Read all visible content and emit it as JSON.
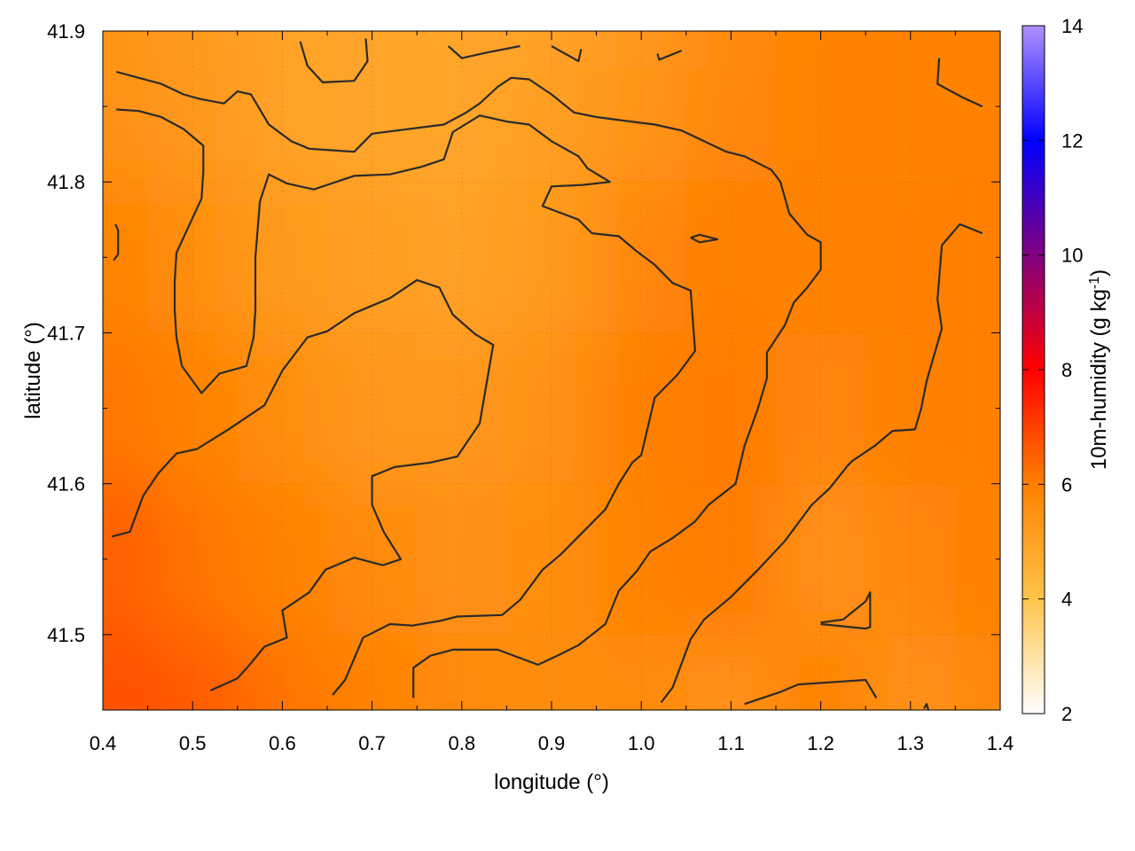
{
  "chart_data": {
    "type": "heatmap",
    "title": "",
    "xlabel": "longitude (°)",
    "ylabel": "latitude (°)",
    "colorbar_label": "10m-humidity (g kg",
    "colorbar_label_sup": "-1",
    "colorbar_label_tail": ")",
    "xlim": [
      0.4,
      1.4
    ],
    "ylim": [
      41.45,
      41.9
    ],
    "xticks": [
      0.4,
      0.5,
      0.6,
      0.7,
      0.8,
      0.9,
      1.0,
      1.1,
      1.2,
      1.3,
      1.4
    ],
    "xtick_labels": [
      "0.4",
      "0.5",
      "0.6",
      "0.7",
      "0.8",
      "0.9",
      "1.0",
      "1.1",
      "1.2",
      "1.3",
      "1.4"
    ],
    "yticks": [
      41.5,
      41.6,
      41.7,
      41.8,
      41.9
    ],
    "ytick_labels": [
      "41.5",
      "41.6",
      "41.7",
      "41.8",
      "41.9"
    ],
    "colorbar_range": [
      2,
      14
    ],
    "colorbar_ticks": [
      2,
      4,
      6,
      8,
      10,
      12,
      14
    ],
    "colorbar_tick_labels": [
      "2",
      "4",
      "6",
      "8",
      "10",
      "12",
      "14"
    ],
    "colorbar_stops": [
      {
        "v": 2,
        "color": "#ffffff"
      },
      {
        "v": 4,
        "color": "#ffc44a"
      },
      {
        "v": 6,
        "color": "#ff8000"
      },
      {
        "v": 8,
        "color": "#ff0000"
      },
      {
        "v": 10,
        "color": "#800080"
      },
      {
        "v": 12,
        "color": "#0000ff"
      },
      {
        "v": 14,
        "color": "#b090ff"
      }
    ],
    "grid": true,
    "field_grid": {
      "x": [
        0.4,
        0.5,
        0.6,
        0.7,
        0.8,
        0.9,
        1.0,
        1.1,
        1.2,
        1.3,
        1.4
      ],
      "y": [
        41.45,
        41.55,
        41.65,
        41.75,
        41.85,
        41.9
      ],
      "values": [
        [
          6.8,
          6.6,
          6.2,
          5.9,
          5.7,
          5.6,
          5.7,
          5.5,
          5.9,
          5.5,
          5.8
        ],
        [
          6.6,
          6.2,
          5.9,
          5.7,
          5.5,
          5.6,
          5.9,
          6.1,
          5.5,
          5.8,
          6.0
        ],
        [
          6.2,
          5.9,
          5.6,
          5.3,
          5.3,
          5.5,
          6.0,
          6.1,
          5.8,
          6.0,
          6.0
        ],
        [
          5.9,
          5.6,
          5.2,
          5.1,
          5.0,
          5.2,
          5.8,
          6.0,
          5.9,
          6.0,
          6.0
        ],
        [
          5.5,
          5.3,
          5.0,
          4.9,
          4.9,
          5.1,
          5.4,
          5.8,
          5.9,
          5.9,
          6.0
        ],
        [
          5.4,
          5.2,
          5.0,
          4.9,
          4.9,
          5.0,
          5.3,
          5.7,
          5.9,
          5.9,
          6.0
        ]
      ]
    },
    "contour_lines": [
      [
        [
          0.41,
          41.565
        ],
        [
          0.43,
          41.568
        ],
        [
          0.445,
          41.592
        ],
        [
          0.462,
          41.607
        ],
        [
          0.482,
          41.62
        ],
        [
          0.505,
          41.623
        ],
        [
          0.54,
          41.636
        ],
        [
          0.58,
          41.652
        ],
        [
          0.6,
          41.675
        ],
        [
          0.628,
          41.697
        ],
        [
          0.65,
          41.701
        ],
        [
          0.68,
          41.713
        ],
        [
          0.72,
          41.723
        ],
        [
          0.75,
          41.735
        ],
        [
          0.775,
          41.73
        ],
        [
          0.79,
          41.712
        ],
        [
          0.815,
          41.699
        ],
        [
          0.835,
          41.692
        ],
        [
          0.83,
          41.675
        ],
        [
          0.82,
          41.64
        ],
        [
          0.795,
          41.618
        ],
        [
          0.765,
          41.614
        ],
        [
          0.725,
          41.611
        ],
        [
          0.7,
          41.605
        ],
        [
          0.7,
          41.586
        ],
        [
          0.713,
          41.568
        ],
        [
          0.732,
          41.55
        ],
        [
          0.712,
          41.546
        ],
        [
          0.68,
          41.551
        ],
        [
          0.648,
          41.543
        ],
        [
          0.63,
          41.528
        ],
        [
          0.6,
          41.516
        ],
        [
          0.605,
          41.498
        ],
        [
          0.58,
          41.492
        ],
        [
          0.565,
          41.481
        ],
        [
          0.55,
          41.471
        ],
        [
          0.52,
          41.463
        ]
      ],
      [
        [
          0.656,
          41.46
        ],
        [
          0.67,
          41.47
        ],
        [
          0.69,
          41.498
        ],
        [
          0.72,
          41.507
        ],
        [
          0.745,
          41.506
        ],
        [
          0.775,
          41.509
        ],
        [
          0.795,
          41.512
        ],
        [
          0.845,
          41.513
        ],
        [
          0.865,
          41.523
        ],
        [
          0.89,
          41.543
        ],
        [
          0.91,
          41.553
        ],
        [
          0.93,
          41.565
        ],
        [
          0.96,
          41.583
        ],
        [
          0.975,
          41.6
        ],
        [
          0.99,
          41.614
        ],
        [
          1.0,
          41.619
        ],
        [
          1.015,
          41.657
        ],
        [
          1.04,
          41.672
        ],
        [
          1.06,
          41.688
        ],
        [
          1.055,
          41.728
        ],
        [
          1.035,
          41.733
        ],
        [
          1.015,
          41.745
        ],
        [
          0.995,
          41.754
        ],
        [
          0.975,
          41.764
        ],
        [
          0.945,
          41.766
        ],
        [
          0.93,
          41.775
        ],
        [
          0.89,
          41.784
        ],
        [
          0.9,
          41.797
        ],
        [
          0.935,
          41.798
        ],
        [
          0.965,
          41.8
        ],
        [
          0.94,
          41.809
        ],
        [
          0.93,
          41.817
        ],
        [
          0.9,
          41.827
        ],
        [
          0.875,
          41.838
        ],
        [
          0.85,
          41.84
        ],
        [
          0.82,
          41.844
        ],
        [
          0.79,
          41.833
        ],
        [
          0.78,
          41.815
        ],
        [
          0.755,
          41.81
        ],
        [
          0.72,
          41.805
        ],
        [
          0.68,
          41.804
        ],
        [
          0.635,
          41.795
        ],
        [
          0.605,
          41.799
        ],
        [
          0.585,
          41.805
        ],
        [
          0.575,
          41.787
        ],
        [
          0.57,
          41.75
        ],
        [
          0.57,
          41.715
        ],
        [
          0.568,
          41.697
        ],
        [
          0.56,
          41.678
        ],
        [
          0.53,
          41.673
        ],
        [
          0.51,
          41.66
        ],
        [
          0.488,
          41.678
        ],
        [
          0.482,
          41.697
        ],
        [
          0.48,
          41.715
        ],
        [
          0.48,
          41.734
        ],
        [
          0.482,
          41.753
        ],
        [
          0.51,
          41.789
        ],
        [
          0.512,
          41.807
        ],
        [
          0.512,
          41.824
        ],
        [
          0.49,
          41.835
        ],
        [
          0.465,
          41.843
        ],
        [
          0.44,
          41.847
        ],
        [
          0.415,
          41.848
        ]
      ],
      [
        [
          1.022,
          41.455
        ],
        [
          1.035,
          41.465
        ],
        [
          1.055,
          41.497
        ],
        [
          1.07,
          41.51
        ],
        [
          1.1,
          41.525
        ],
        [
          1.13,
          41.543
        ],
        [
          1.16,
          41.562
        ],
        [
          1.175,
          41.574
        ],
        [
          1.19,
          41.586
        ],
        [
          1.21,
          41.597
        ],
        [
          1.23,
          41.612
        ],
        [
          1.235,
          41.615
        ],
        [
          1.26,
          41.625
        ],
        [
          1.28,
          41.635
        ],
        [
          1.305,
          41.636
        ],
        [
          1.312,
          41.65
        ],
        [
          1.318,
          41.668
        ],
        [
          1.335,
          41.703
        ],
        [
          1.33,
          41.722
        ],
        [
          1.335,
          41.758
        ],
        [
          1.355,
          41.772
        ],
        [
          1.38,
          41.766
        ]
      ],
      [
        [
          0.746,
          41.458
        ],
        [
          0.746,
          41.478
        ],
        [
          0.765,
          41.486
        ],
        [
          0.79,
          41.49
        ],
        [
          0.84,
          41.49
        ],
        [
          0.885,
          41.48
        ],
        [
          0.91,
          41.487
        ],
        [
          0.93,
          41.493
        ],
        [
          0.96,
          41.507
        ],
        [
          0.975,
          41.529
        ],
        [
          0.995,
          41.542
        ],
        [
          1.01,
          41.555
        ],
        [
          1.035,
          41.564
        ],
        [
          1.06,
          41.575
        ],
        [
          1.075,
          41.586
        ],
        [
          1.105,
          41.6
        ],
        [
          1.115,
          41.625
        ],
        [
          1.13,
          41.65
        ],
        [
          1.14,
          41.67
        ],
        [
          1.14,
          41.687
        ],
        [
          1.16,
          41.705
        ],
        [
          1.17,
          41.72
        ],
        [
          1.185,
          41.73
        ],
        [
          1.2,
          41.742
        ],
        [
          1.2,
          41.76
        ],
        [
          1.185,
          41.765
        ],
        [
          1.165,
          41.779
        ],
        [
          1.155,
          41.8
        ],
        [
          1.145,
          41.808
        ],
        [
          1.115,
          41.817
        ],
        [
          1.095,
          41.82
        ],
        [
          1.07,
          41.827
        ],
        [
          1.045,
          41.834
        ],
        [
          1.015,
          41.838
        ],
        [
          0.975,
          41.841
        ],
        [
          0.95,
          41.843
        ],
        [
          0.925,
          41.846
        ],
        [
          0.9,
          41.858
        ],
        [
          0.875,
          41.868
        ],
        [
          0.855,
          41.869
        ],
        [
          0.84,
          41.863
        ],
        [
          0.82,
          41.852
        ],
        [
          0.805,
          41.846
        ],
        [
          0.78,
          41.838
        ],
        [
          0.7,
          41.832
        ],
        [
          0.68,
          41.82
        ],
        [
          0.63,
          41.822
        ],
        [
          0.61,
          41.827
        ],
        [
          0.585,
          41.838
        ],
        [
          0.565,
          41.858
        ],
        [
          0.55,
          41.86
        ],
        [
          0.535,
          41.852
        ],
        [
          0.508,
          41.855
        ],
        [
          0.49,
          41.858
        ],
        [
          0.465,
          41.865
        ],
        [
          0.44,
          41.869
        ],
        [
          0.415,
          41.873
        ]
      ],
      [
        [
          1.115,
          41.454
        ],
        [
          1.14,
          41.459
        ],
        [
          1.155,
          41.462
        ],
        [
          1.175,
          41.467
        ],
        [
          1.225,
          41.469
        ],
        [
          1.25,
          41.47
        ],
        [
          1.262,
          41.458
        ]
      ],
      [
        [
          1.2,
          41.508
        ],
        [
          1.225,
          41.51
        ],
        [
          1.25,
          41.522
        ],
        [
          1.255,
          41.528
        ],
        [
          1.255,
          41.505
        ],
        [
          1.25,
          41.504
        ],
        [
          1.2,
          41.507
        ]
      ],
      [
        [
          1.055,
          41.763
        ],
        [
          1.065,
          41.765
        ],
        [
          1.085,
          41.762
        ],
        [
          1.065,
          41.76
        ],
        [
          1.055,
          41.763
        ]
      ],
      [
        [
          0.414,
          41.772
        ],
        [
          0.417,
          41.768
        ],
        [
          0.417,
          41.752
        ],
        [
          0.412,
          41.748
        ]
      ],
      [
        [
          0.62,
          41.893
        ],
        [
          0.628,
          41.877
        ],
        [
          0.645,
          41.866
        ],
        [
          0.68,
          41.867
        ],
        [
          0.695,
          41.88
        ],
        [
          0.693,
          41.895
        ]
      ],
      [
        [
          0.785,
          41.89
        ],
        [
          0.8,
          41.882
        ],
        [
          0.83,
          41.886
        ],
        [
          0.865,
          41.89
        ]
      ],
      [
        [
          0.9,
          41.89
        ],
        [
          0.93,
          41.88
        ],
        [
          0.933,
          41.888
        ]
      ],
      [
        [
          1.018,
          41.885
        ],
        [
          1.02,
          41.881
        ],
        [
          1.045,
          41.887
        ]
      ],
      [
        [
          1.332,
          41.882
        ],
        [
          1.33,
          41.865
        ],
        [
          1.358,
          41.856
        ],
        [
          1.38,
          41.85
        ]
      ],
      [
        [
          1.315,
          41.451
        ],
        [
          1.318,
          41.454
        ],
        [
          1.32,
          41.45
        ]
      ]
    ]
  }
}
